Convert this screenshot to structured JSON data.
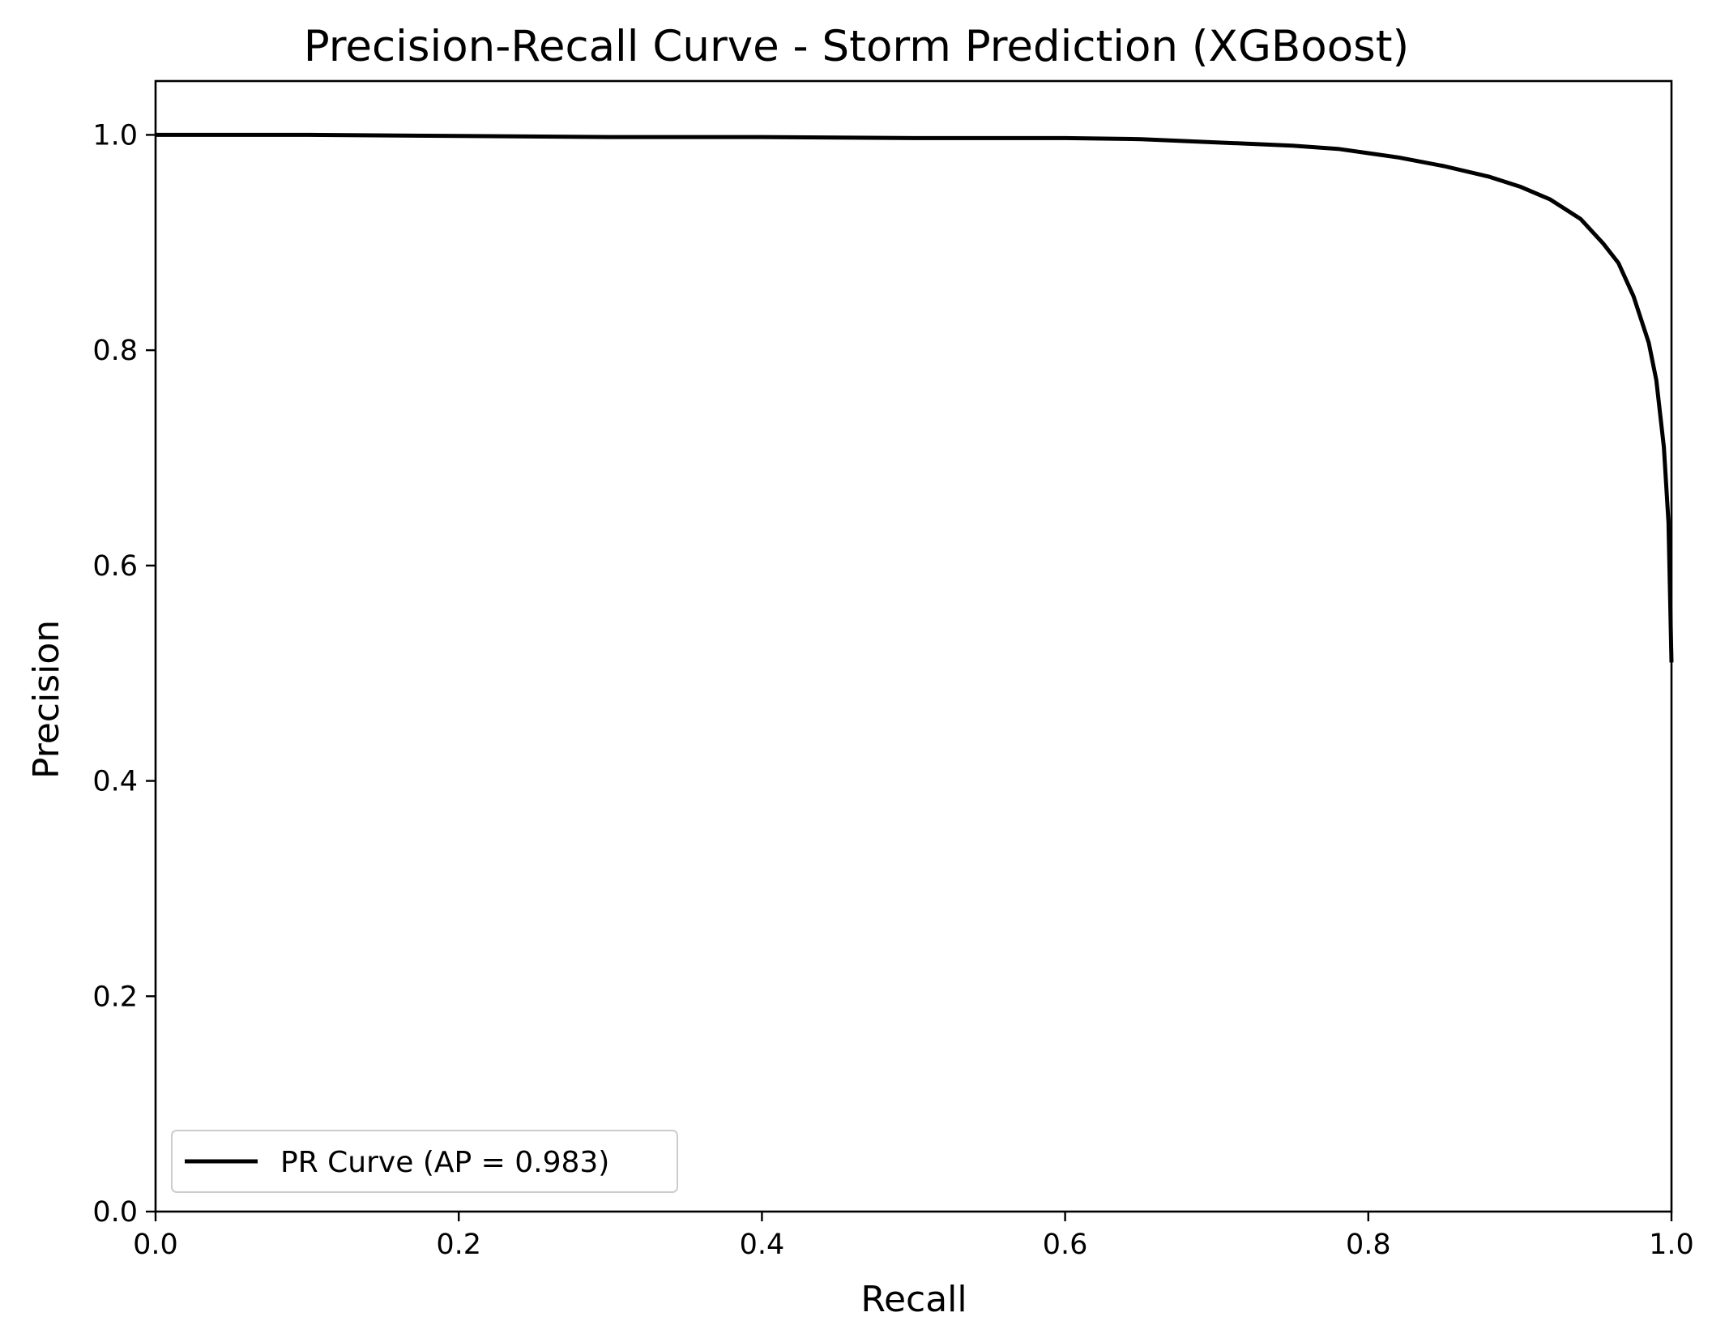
{
  "chart_data": {
    "type": "line",
    "title": "Precision-Recall Curve - Storm Prediction (XGBoost)",
    "xlabel": "Recall",
    "ylabel": "Precision",
    "xlim": [
      0.0,
      1.0
    ],
    "ylim": [
      0.0,
      1.05
    ],
    "xticks": [
      "0.0",
      "0.2",
      "0.4",
      "0.6",
      "0.8",
      "1.0"
    ],
    "yticks": [
      "0.0",
      "0.2",
      "0.4",
      "0.6",
      "0.8",
      "1.0"
    ],
    "grid": false,
    "legend": {
      "placement": "lower-left",
      "entries": [
        "PR Curve (AP = 0.983)"
      ]
    },
    "series": [
      {
        "name": "PR Curve (AP = 0.983)",
        "color": "#000000",
        "x": [
          0.0,
          0.1,
          0.2,
          0.3,
          0.4,
          0.5,
          0.6,
          0.65,
          0.7,
          0.75,
          0.78,
          0.8,
          0.82,
          0.85,
          0.88,
          0.9,
          0.92,
          0.94,
          0.955,
          0.965,
          0.975,
          0.985,
          0.99,
          0.995,
          0.998,
          1.0
        ],
        "y": [
          1.0,
          1.0,
          0.999,
          0.998,
          0.998,
          0.997,
          0.997,
          0.996,
          0.993,
          0.99,
          0.987,
          0.983,
          0.979,
          0.971,
          0.961,
          0.952,
          0.94,
          0.922,
          0.899,
          0.881,
          0.85,
          0.807,
          0.772,
          0.71,
          0.64,
          0.51
        ]
      }
    ]
  }
}
